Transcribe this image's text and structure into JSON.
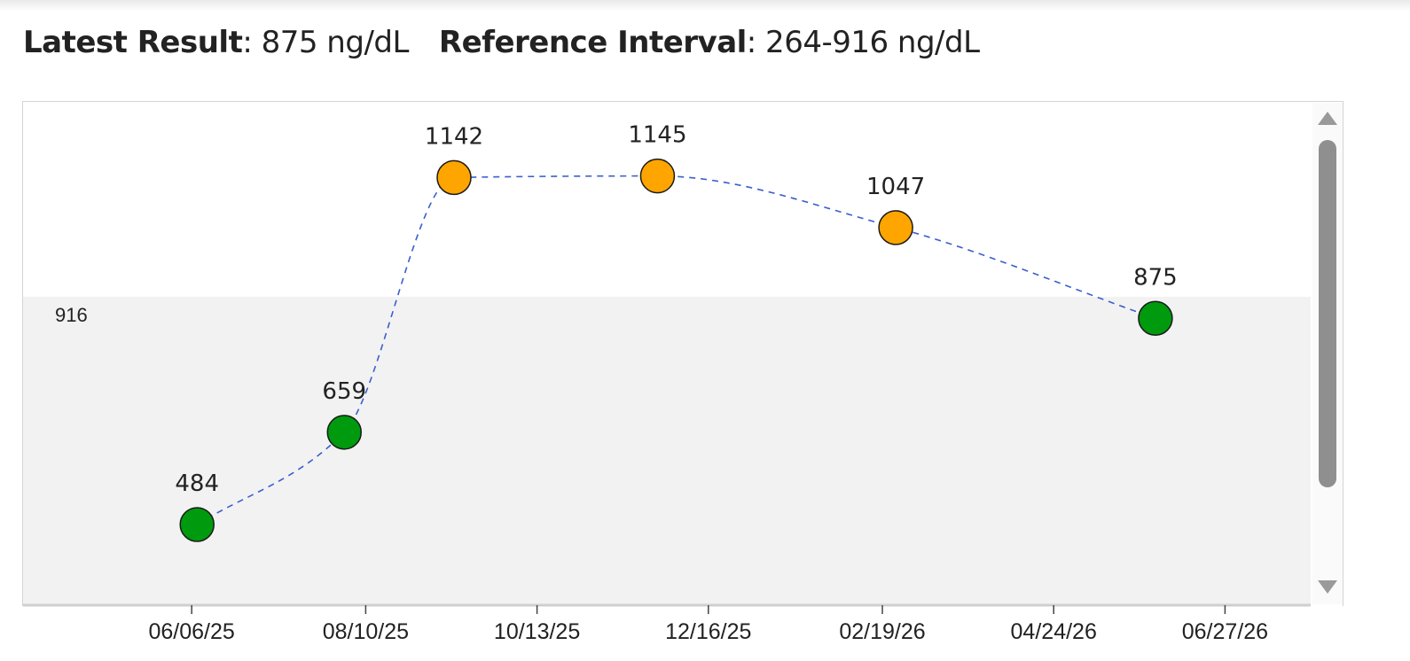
{
  "header": {
    "latest_label": "Latest Result",
    "latest_value": ": 875 ng/dL",
    "reference_label": "Reference Interval",
    "reference_value": ": 264-916 ng/dL"
  },
  "colors": {
    "in_range": "#009a0e",
    "out_of_range": "#ffa500",
    "trend_line": "#3a5fcd",
    "reference_band": "#f2f2f2"
  },
  "chart_data": {
    "type": "line",
    "title": "",
    "xlabel": "",
    "ylabel": "",
    "units": "ng/dL",
    "x_ticks": [
      "06/06/25",
      "08/10/25",
      "10/13/25",
      "12/16/25",
      "02/19/26",
      "04/24/26",
      "06/27/26"
    ],
    "xlim": [
      "2025-04-04",
      "2026-07-29"
    ],
    "reference_interval": [
      264,
      916
    ],
    "reference_label": "916",
    "series": [
      {
        "points": [
          {
            "date": "2025-06-08",
            "value": 484,
            "label": "484",
            "status": "normal"
          },
          {
            "date": "2025-08-02",
            "value": 659,
            "label": "659",
            "status": "normal"
          },
          {
            "date": "2025-09-12",
            "value": 1142,
            "label": "1142",
            "status": "high"
          },
          {
            "date": "2025-11-27",
            "value": 1145,
            "label": "1145",
            "status": "high"
          },
          {
            "date": "2026-02-24",
            "value": 1047,
            "label": "1047",
            "status": "high"
          },
          {
            "date": "2026-06-01",
            "value": 875,
            "label": "875",
            "status": "normal"
          }
        ]
      }
    ]
  }
}
